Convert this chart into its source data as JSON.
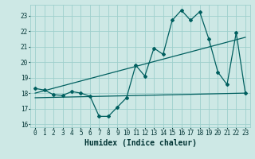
{
  "title": "",
  "xlabel": "Humidex (Indice chaleur)",
  "background_color": "#cde8e5",
  "grid_color": "#9ecfcc",
  "line_color": "#005f5f",
  "xlim": [
    -0.5,
    23.5
  ],
  "ylim": [
    15.8,
    23.7
  ],
  "yticks": [
    16,
    17,
    18,
    19,
    20,
    21,
    22,
    23
  ],
  "xticks": [
    0,
    1,
    2,
    3,
    4,
    5,
    6,
    7,
    8,
    9,
    10,
    11,
    12,
    13,
    14,
    15,
    16,
    17,
    18,
    19,
    20,
    21,
    22,
    23
  ],
  "line1_x": [
    0,
    1,
    2,
    3,
    4,
    5,
    6,
    7,
    8,
    9,
    10,
    11,
    12,
    13,
    14,
    15,
    16,
    17,
    18,
    19,
    20,
    21,
    22,
    23
  ],
  "line1_y": [
    18.3,
    18.2,
    17.9,
    17.85,
    18.1,
    18.0,
    17.8,
    16.5,
    16.5,
    17.1,
    17.7,
    19.8,
    19.1,
    20.9,
    20.5,
    22.7,
    23.35,
    22.7,
    23.25,
    21.5,
    19.35,
    18.55,
    21.9,
    18.0
  ],
  "line2_x": [
    0,
    23
  ],
  "line2_y": [
    18.0,
    21.6
  ],
  "line3_x": [
    0,
    23
  ],
  "line3_y": [
    17.7,
    18.0
  ],
  "figsize": [
    3.2,
    2.0
  ],
  "dpi": 100,
  "font_color": "#003333",
  "tick_fontsize": 5.5,
  "label_fontsize": 7.0
}
